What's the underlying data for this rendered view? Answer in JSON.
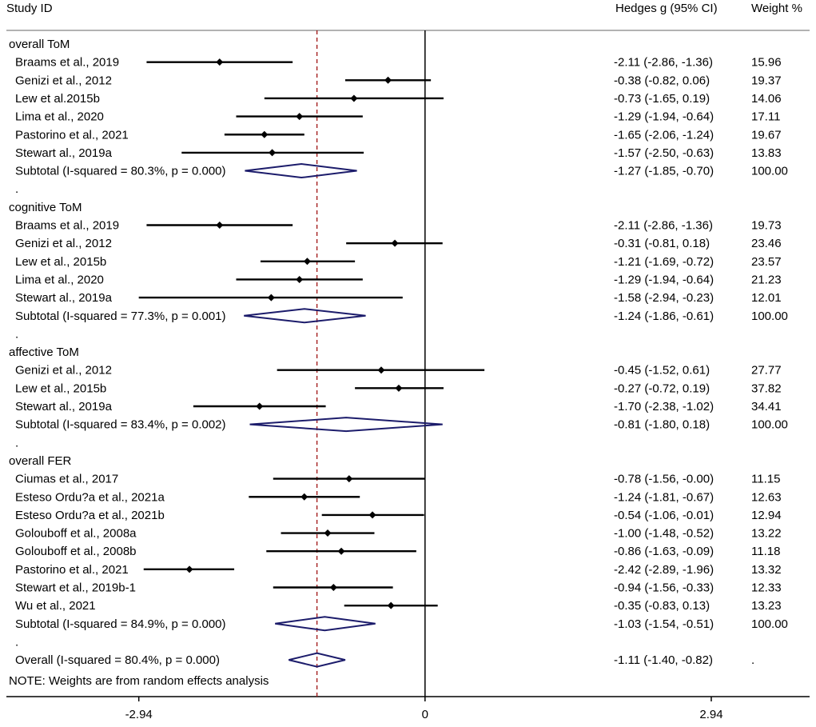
{
  "chart_data": {
    "type": "forest",
    "header": {
      "study": "Study ID",
      "effect": "Hedges g (95% CI)",
      "weight": "Weight %"
    },
    "x_axis": {
      "xlim": [
        -4.3,
        3.95
      ],
      "null_line": 0,
      "overall_estimate_line": -1.11,
      "ticks": [
        {
          "value": -2.94,
          "label": "-2.94"
        },
        {
          "value": 0,
          "label": "0"
        },
        {
          "value": 2.94,
          "label": "2.94"
        }
      ]
    },
    "rows": [
      {
        "type": "group",
        "label": "overall ToM"
      },
      {
        "type": "study",
        "label": "Braams et al., 2019",
        "est": -2.11,
        "lo": -2.86,
        "hi": -1.36,
        "ci": "-2.11 (-2.86, -1.36)",
        "weight": "15.96"
      },
      {
        "type": "study",
        "label": "Genizi et al., 2012",
        "est": -0.38,
        "lo": -0.82,
        "hi": 0.06,
        "ci": "-0.38 (-0.82, 0.06)",
        "weight": "19.37"
      },
      {
        "type": "study",
        "label": "Lew et al.2015b",
        "est": -0.73,
        "lo": -1.65,
        "hi": 0.19,
        "ci": "-0.73 (-1.65, 0.19)",
        "weight": "14.06"
      },
      {
        "type": "study",
        "label": "Lima et al., 2020",
        "est": -1.29,
        "lo": -1.94,
        "hi": -0.64,
        "ci": "-1.29 (-1.94, -0.64)",
        "weight": "17.11"
      },
      {
        "type": "study",
        "label": "Pastorino et al., 2021",
        "est": -1.65,
        "lo": -2.06,
        "hi": -1.24,
        "ci": "-1.65 (-2.06, -1.24)",
        "weight": "19.67"
      },
      {
        "type": "study",
        "label": "Stewart al., 2019a",
        "est": -1.57,
        "lo": -2.5,
        "hi": -0.63,
        "ci": "-1.57 (-2.50, -0.63)",
        "weight": "13.83"
      },
      {
        "type": "subtotal",
        "label": "Subtotal  (I-squared = 80.3%, p = 0.000)",
        "est": -1.27,
        "lo": -1.85,
        "hi": -0.7,
        "ci": "-1.27 (-1.85, -0.70)",
        "weight": "100.00"
      },
      {
        "type": "spacer",
        "label": "."
      },
      {
        "type": "group",
        "label": "cognitive ToM"
      },
      {
        "type": "study",
        "label": "Braams et al., 2019",
        "est": -2.11,
        "lo": -2.86,
        "hi": -1.36,
        "ci": "-2.11 (-2.86, -1.36)",
        "weight": "19.73"
      },
      {
        "type": "study",
        "label": "Genizi et al., 2012",
        "est": -0.31,
        "lo": -0.81,
        "hi": 0.18,
        "ci": "-0.31 (-0.81, 0.18)",
        "weight": "23.46"
      },
      {
        "type": "study",
        "label": "Lew et al., 2015b",
        "est": -1.21,
        "lo": -1.69,
        "hi": -0.72,
        "ci": "-1.21 (-1.69, -0.72)",
        "weight": "23.57"
      },
      {
        "type": "study",
        "label": "Lima et al., 2020",
        "est": -1.29,
        "lo": -1.94,
        "hi": -0.64,
        "ci": "-1.29 (-1.94, -0.64)",
        "weight": "21.23"
      },
      {
        "type": "study",
        "label": "Stewart al., 2019a",
        "est": -1.58,
        "lo": -2.94,
        "hi": -0.23,
        "ci": "-1.58 (-2.94, -0.23)",
        "weight": "12.01"
      },
      {
        "type": "subtotal",
        "label": "Subtotal  (I-squared = 77.3%, p = 0.001)",
        "est": -1.24,
        "lo": -1.86,
        "hi": -0.61,
        "ci": "-1.24 (-1.86, -0.61)",
        "weight": "100.00"
      },
      {
        "type": "spacer",
        "label": "."
      },
      {
        "type": "group",
        "label": "affective ToM"
      },
      {
        "type": "study",
        "label": "Genizi et al., 2012",
        "est": -0.45,
        "lo": -1.52,
        "hi": 0.61,
        "ci": "-0.45 (-1.52, 0.61)",
        "weight": "27.77"
      },
      {
        "type": "study",
        "label": "Lew et al., 2015b",
        "est": -0.27,
        "lo": -0.72,
        "hi": 0.19,
        "ci": "-0.27 (-0.72, 0.19)",
        "weight": "37.82"
      },
      {
        "type": "study",
        "label": "Stewart al., 2019a",
        "est": -1.7,
        "lo": -2.38,
        "hi": -1.02,
        "ci": "-1.70 (-2.38, -1.02)",
        "weight": "34.41"
      },
      {
        "type": "subtotal",
        "label": "Subtotal  (I-squared = 83.4%, p = 0.002)",
        "est": -0.81,
        "lo": -1.8,
        "hi": 0.18,
        "ci": "-0.81 (-1.80, 0.18)",
        "weight": "100.00"
      },
      {
        "type": "spacer",
        "label": "."
      },
      {
        "type": "group",
        "label": "overall FER"
      },
      {
        "type": "study",
        "label": "Ciumas et al., 2017",
        "est": -0.78,
        "lo": -1.56,
        "hi": 0.0,
        "ci": "-0.78 (-1.56, -0.00)",
        "weight": "11.15"
      },
      {
        "type": "study",
        "label": "Esteso Ordu?a et al., 2021a",
        "est": -1.24,
        "lo": -1.81,
        "hi": -0.67,
        "ci": "-1.24 (-1.81, -0.67)",
        "weight": "12.63"
      },
      {
        "type": "study",
        "label": "Esteso Ordu?a et al., 2021b",
        "est": -0.54,
        "lo": -1.06,
        "hi": -0.01,
        "ci": "-0.54 (-1.06, -0.01)",
        "weight": "12.94"
      },
      {
        "type": "study",
        "label": "Golouboff et al., 2008a",
        "est": -1.0,
        "lo": -1.48,
        "hi": -0.52,
        "ci": "-1.00 (-1.48, -0.52)",
        "weight": "13.22"
      },
      {
        "type": "study",
        "label": "Golouboff et al., 2008b",
        "est": -0.86,
        "lo": -1.63,
        "hi": -0.09,
        "ci": "-0.86 (-1.63, -0.09)",
        "weight": "11.18"
      },
      {
        "type": "study",
        "label": "Pastorino et al., 2021",
        "est": -2.42,
        "lo": -2.89,
        "hi": -1.96,
        "ci": "-2.42 (-2.89, -1.96)",
        "weight": "13.32"
      },
      {
        "type": "study",
        "label": "Stewart et al., 2019b-1",
        "est": -0.94,
        "lo": -1.56,
        "hi": -0.33,
        "ci": "-0.94 (-1.56, -0.33)",
        "weight": "12.33"
      },
      {
        "type": "study",
        "label": "Wu et al., 2021",
        "est": -0.35,
        "lo": -0.83,
        "hi": 0.13,
        "ci": "-0.35 (-0.83, 0.13)",
        "weight": "13.23"
      },
      {
        "type": "subtotal",
        "label": "Subtotal  (I-squared = 84.9%, p = 0.000)",
        "est": -1.03,
        "lo": -1.54,
        "hi": -0.51,
        "ci": "-1.03 (-1.54, -0.51)",
        "weight": "100.00"
      },
      {
        "type": "spacer",
        "label": "."
      },
      {
        "type": "overall",
        "label": "Overall  (I-squared = 80.4%, p = 0.000)",
        "est": -1.11,
        "lo": -1.4,
        "hi": -0.82,
        "ci": "-1.11 (-1.40, -0.82)",
        "weight": "."
      },
      {
        "type": "note",
        "label": "NOTE: Weights are from random effects analysis"
      }
    ],
    "colors": {
      "text": "#000000",
      "ci_line": "#000000",
      "diamond": "#1c1c6b",
      "estimate_line": "#a31d1d",
      "rule": "#999999"
    }
  }
}
